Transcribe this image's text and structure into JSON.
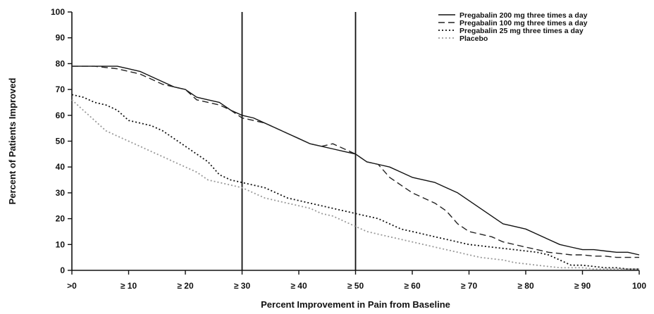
{
  "chart_data": {
    "type": "line",
    "title": "",
    "xlabel": "Percent Improvement in Pain from Baseline",
    "ylabel": "Percent of Patients Improved",
    "xlim": [
      0,
      100
    ],
    "ylim": [
      0,
      100
    ],
    "x_ticks": [
      0,
      10,
      20,
      30,
      40,
      50,
      60,
      70,
      80,
      90,
      100
    ],
    "x_tick_labels": [
      ">0",
      "≥ 10",
      "≥ 20",
      "≥ 30",
      "≥ 40",
      "≥ 50",
      "≥ 60",
      "≥ 70",
      "≥ 80",
      "≥ 90",
      "100"
    ],
    "y_ticks": [
      0,
      10,
      20,
      30,
      40,
      50,
      60,
      70,
      80,
      90,
      100
    ],
    "y_tick_labels": [
      "0",
      "10",
      "20",
      "30",
      "40",
      "50",
      "60",
      "70",
      "80",
      "90",
      "100"
    ],
    "reference_lines_x": [
      30,
      50
    ],
    "grid": false,
    "legend_position": "top-right",
    "series": [
      {
        "name": "Pregabalin 200 mg three times a day",
        "style": "solid",
        "color": "#111111",
        "x": [
          0,
          4,
          8,
          10,
          12,
          14,
          16,
          18,
          20,
          22,
          24,
          26,
          28,
          30,
          32,
          34,
          36,
          38,
          40,
          42,
          44,
          46,
          48,
          50,
          52,
          54,
          56,
          58,
          60,
          62,
          64,
          66,
          68,
          70,
          72,
          74,
          76,
          78,
          80,
          82,
          84,
          86,
          88,
          90,
          92,
          94,
          96,
          98,
          100
        ],
        "y": [
          79,
          79,
          79,
          78,
          77,
          75,
          73,
          71,
          70,
          67,
          66,
          65,
          62,
          60,
          59,
          57,
          55,
          53,
          51,
          49,
          48,
          47,
          46,
          45,
          42,
          41,
          40,
          38,
          36,
          35,
          34,
          32,
          30,
          27,
          24,
          21,
          18,
          17,
          16,
          14,
          12,
          10,
          9,
          8,
          8,
          7.5,
          7,
          7,
          6
        ]
      },
      {
        "name": "Pregabalin 100 mg three times a day",
        "style": "dashed",
        "color": "#222222",
        "x": [
          0,
          4,
          8,
          10,
          12,
          14,
          16,
          18,
          20,
          22,
          24,
          26,
          28,
          30,
          32,
          34,
          36,
          38,
          40,
          42,
          44,
          46,
          48,
          50,
          52,
          54,
          56,
          58,
          60,
          62,
          64,
          66,
          68,
          70,
          72,
          74,
          76,
          78,
          80,
          82,
          84,
          86,
          88,
          90,
          92,
          94,
          96,
          98,
          100
        ],
        "y": [
          79,
          79,
          78,
          77,
          76,
          74,
          72,
          71,
          70,
          66,
          65,
          64,
          62,
          59,
          58,
          57,
          55,
          53,
          51,
          49,
          48,
          49,
          47,
          45,
          42,
          41,
          36,
          33,
          30,
          28,
          26,
          23,
          18,
          15,
          14,
          13,
          11,
          10,
          9,
          8,
          7,
          6.5,
          6,
          6,
          5.5,
          5.5,
          5,
          5,
          5
        ]
      },
      {
        "name": "Pregabalin 25 mg three times a day",
        "style": "dotted",
        "color": "#111111",
        "x": [
          0,
          2,
          4,
          6,
          8,
          10,
          12,
          14,
          16,
          18,
          20,
          22,
          24,
          26,
          28,
          30,
          32,
          34,
          36,
          38,
          40,
          42,
          44,
          46,
          48,
          50,
          52,
          54,
          56,
          58,
          60,
          62,
          64,
          66,
          68,
          70,
          72,
          74,
          76,
          78,
          80,
          82,
          84,
          86,
          88,
          90,
          92,
          94,
          96,
          98,
          100
        ],
        "y": [
          68,
          67,
          65,
          64,
          62,
          58,
          57,
          56,
          54,
          51,
          48,
          45,
          42,
          37,
          35,
          34,
          33,
          32,
          30,
          28,
          27,
          26,
          25,
          24,
          23,
          22,
          21,
          20,
          18,
          16,
          15,
          14,
          13,
          12,
          11,
          10,
          9.5,
          9,
          8.5,
          8,
          7.5,
          7,
          6,
          4,
          2,
          2,
          1.5,
          1,
          1,
          0.5,
          0.5
        ]
      },
      {
        "name": "Placebo",
        "style": "dotted",
        "color": "#999999",
        "x": [
          0,
          2,
          4,
          6,
          8,
          10,
          12,
          14,
          16,
          18,
          20,
          22,
          24,
          26,
          28,
          30,
          32,
          34,
          36,
          38,
          40,
          42,
          44,
          46,
          48,
          50,
          52,
          54,
          56,
          58,
          60,
          62,
          64,
          66,
          68,
          70,
          72,
          74,
          76,
          78,
          80,
          82,
          84,
          86,
          88,
          90,
          92,
          94,
          96,
          98,
          100
        ],
        "y": [
          66,
          62,
          58,
          54,
          52,
          50,
          48,
          46,
          44,
          42,
          40,
          38,
          35,
          34,
          33,
          32,
          30,
          28,
          27,
          26,
          25,
          24,
          22,
          21,
          19,
          17,
          15,
          14,
          13,
          12,
          11,
          10,
          9,
          8,
          7,
          6,
          5,
          4.5,
          4,
          3,
          2.5,
          2,
          1.5,
          1,
          1,
          1,
          0.5,
          0.5,
          0.5,
          0.5,
          0.5
        ]
      }
    ]
  }
}
